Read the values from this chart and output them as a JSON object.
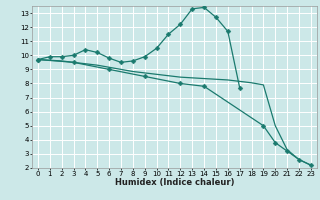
{
  "xlabel": "Humidex (Indice chaleur)",
  "bg_color": "#cce8e8",
  "grid_color": "#ffffff",
  "line_color": "#1a7a6e",
  "xlim": [
    -0.5,
    23.5
  ],
  "ylim": [
    2,
    13.5
  ],
  "xticks": [
    0,
    1,
    2,
    3,
    4,
    5,
    6,
    7,
    8,
    9,
    10,
    11,
    12,
    13,
    14,
    15,
    16,
    17,
    18,
    19,
    20,
    21,
    22,
    23
  ],
  "yticks": [
    2,
    3,
    4,
    5,
    6,
    7,
    8,
    9,
    10,
    11,
    12,
    13
  ],
  "series": [
    {
      "x": [
        0,
        1,
        2,
        3,
        4,
        5,
        6,
        7,
        8,
        9,
        10,
        11,
        12,
        13,
        14,
        15,
        16,
        17
      ],
      "y": [
        9.7,
        9.9,
        9.9,
        10.0,
        10.4,
        10.2,
        9.8,
        9.5,
        9.6,
        9.9,
        10.5,
        11.5,
        12.2,
        13.3,
        13.4,
        12.7,
        11.7,
        7.7
      ],
      "marker": true,
      "markersize": 2.5
    },
    {
      "x": [
        0,
        1,
        2,
        3,
        4,
        5,
        6,
        7,
        8,
        9,
        10,
        11,
        12,
        13,
        14,
        15,
        16,
        17,
        18,
        19,
        20,
        21,
        22,
        23
      ],
      "y": [
        9.7,
        9.65,
        9.6,
        9.5,
        9.4,
        9.3,
        9.15,
        9.0,
        8.85,
        8.75,
        8.65,
        8.55,
        8.45,
        8.4,
        8.35,
        8.3,
        8.25,
        8.15,
        8.05,
        7.9,
        5.0,
        3.3,
        2.6,
        2.2
      ],
      "marker": false,
      "markersize": 0
    },
    {
      "x": [
        0,
        3,
        6,
        9,
        12,
        14,
        19,
        20,
        21,
        22,
        23
      ],
      "y": [
        9.7,
        9.5,
        9.0,
        8.5,
        8.0,
        7.8,
        5.0,
        3.8,
        3.2,
        2.6,
        2.2
      ],
      "marker": true,
      "markersize": 2.5
    }
  ]
}
